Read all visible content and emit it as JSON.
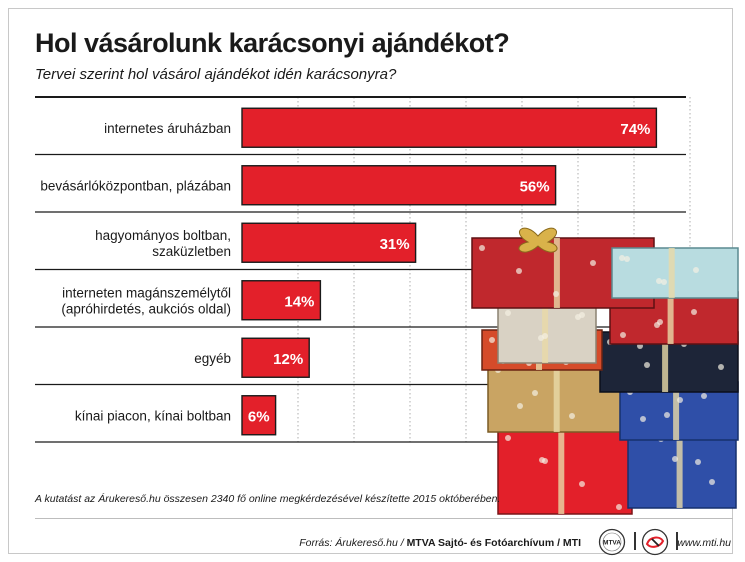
{
  "header": {
    "title": "Hol vásárolunk karácsonyi ajándékot?",
    "subtitle": "Tervei szerint hol vásárol ajándékot idén karácsonyra?"
  },
  "chart_data": {
    "type": "bar",
    "orientation": "horizontal",
    "title": "Hol vásárolunk karácsonyi ajándékot?",
    "subtitle": "Tervei szerint hol vásárol ajándékot idén karácsonyra?",
    "categories": [
      [
        "internetes áruházban"
      ],
      [
        "bevásárlóközpontban, plázában"
      ],
      [
        "hagyományos boltban,",
        "szaküzletben"
      ],
      [
        "interneten magánszemélytől",
        "(apróhirdetés, aukciós oldal)"
      ],
      [
        "egyéb"
      ],
      [
        "kínai piacon, kínai boltban"
      ]
    ],
    "values": [
      74,
      56,
      31,
      14,
      12,
      6
    ],
    "value_labels": [
      "74%",
      "56%",
      "31%",
      "14%",
      "12%",
      "6%"
    ],
    "unit": "%",
    "xlim": [
      0,
      100
    ],
    "grid": "vertical dotted",
    "bar_color": "#e3202a"
  },
  "footer": {
    "note": "A kutatást az Árukereső.hu összesen 2340 fő online megkérdezésével készítette 2015 októberében.",
    "source_prefix": "Forrás: Árukereső.hu / ",
    "source_agency": "MTVA Sajtó- és Fotóarchívum / MTI",
    "logo_text": "MTVA",
    "website": "www.mti.hu"
  },
  "photo": {
    "description_icon": "gift-boxes-photo",
    "colors": [
      "#c0282d",
      "#b8dce0",
      "#d9d2c4",
      "#1d2538",
      "#2f4fa8",
      "#e3202a",
      "#c9a463",
      "#d54b2a"
    ]
  }
}
